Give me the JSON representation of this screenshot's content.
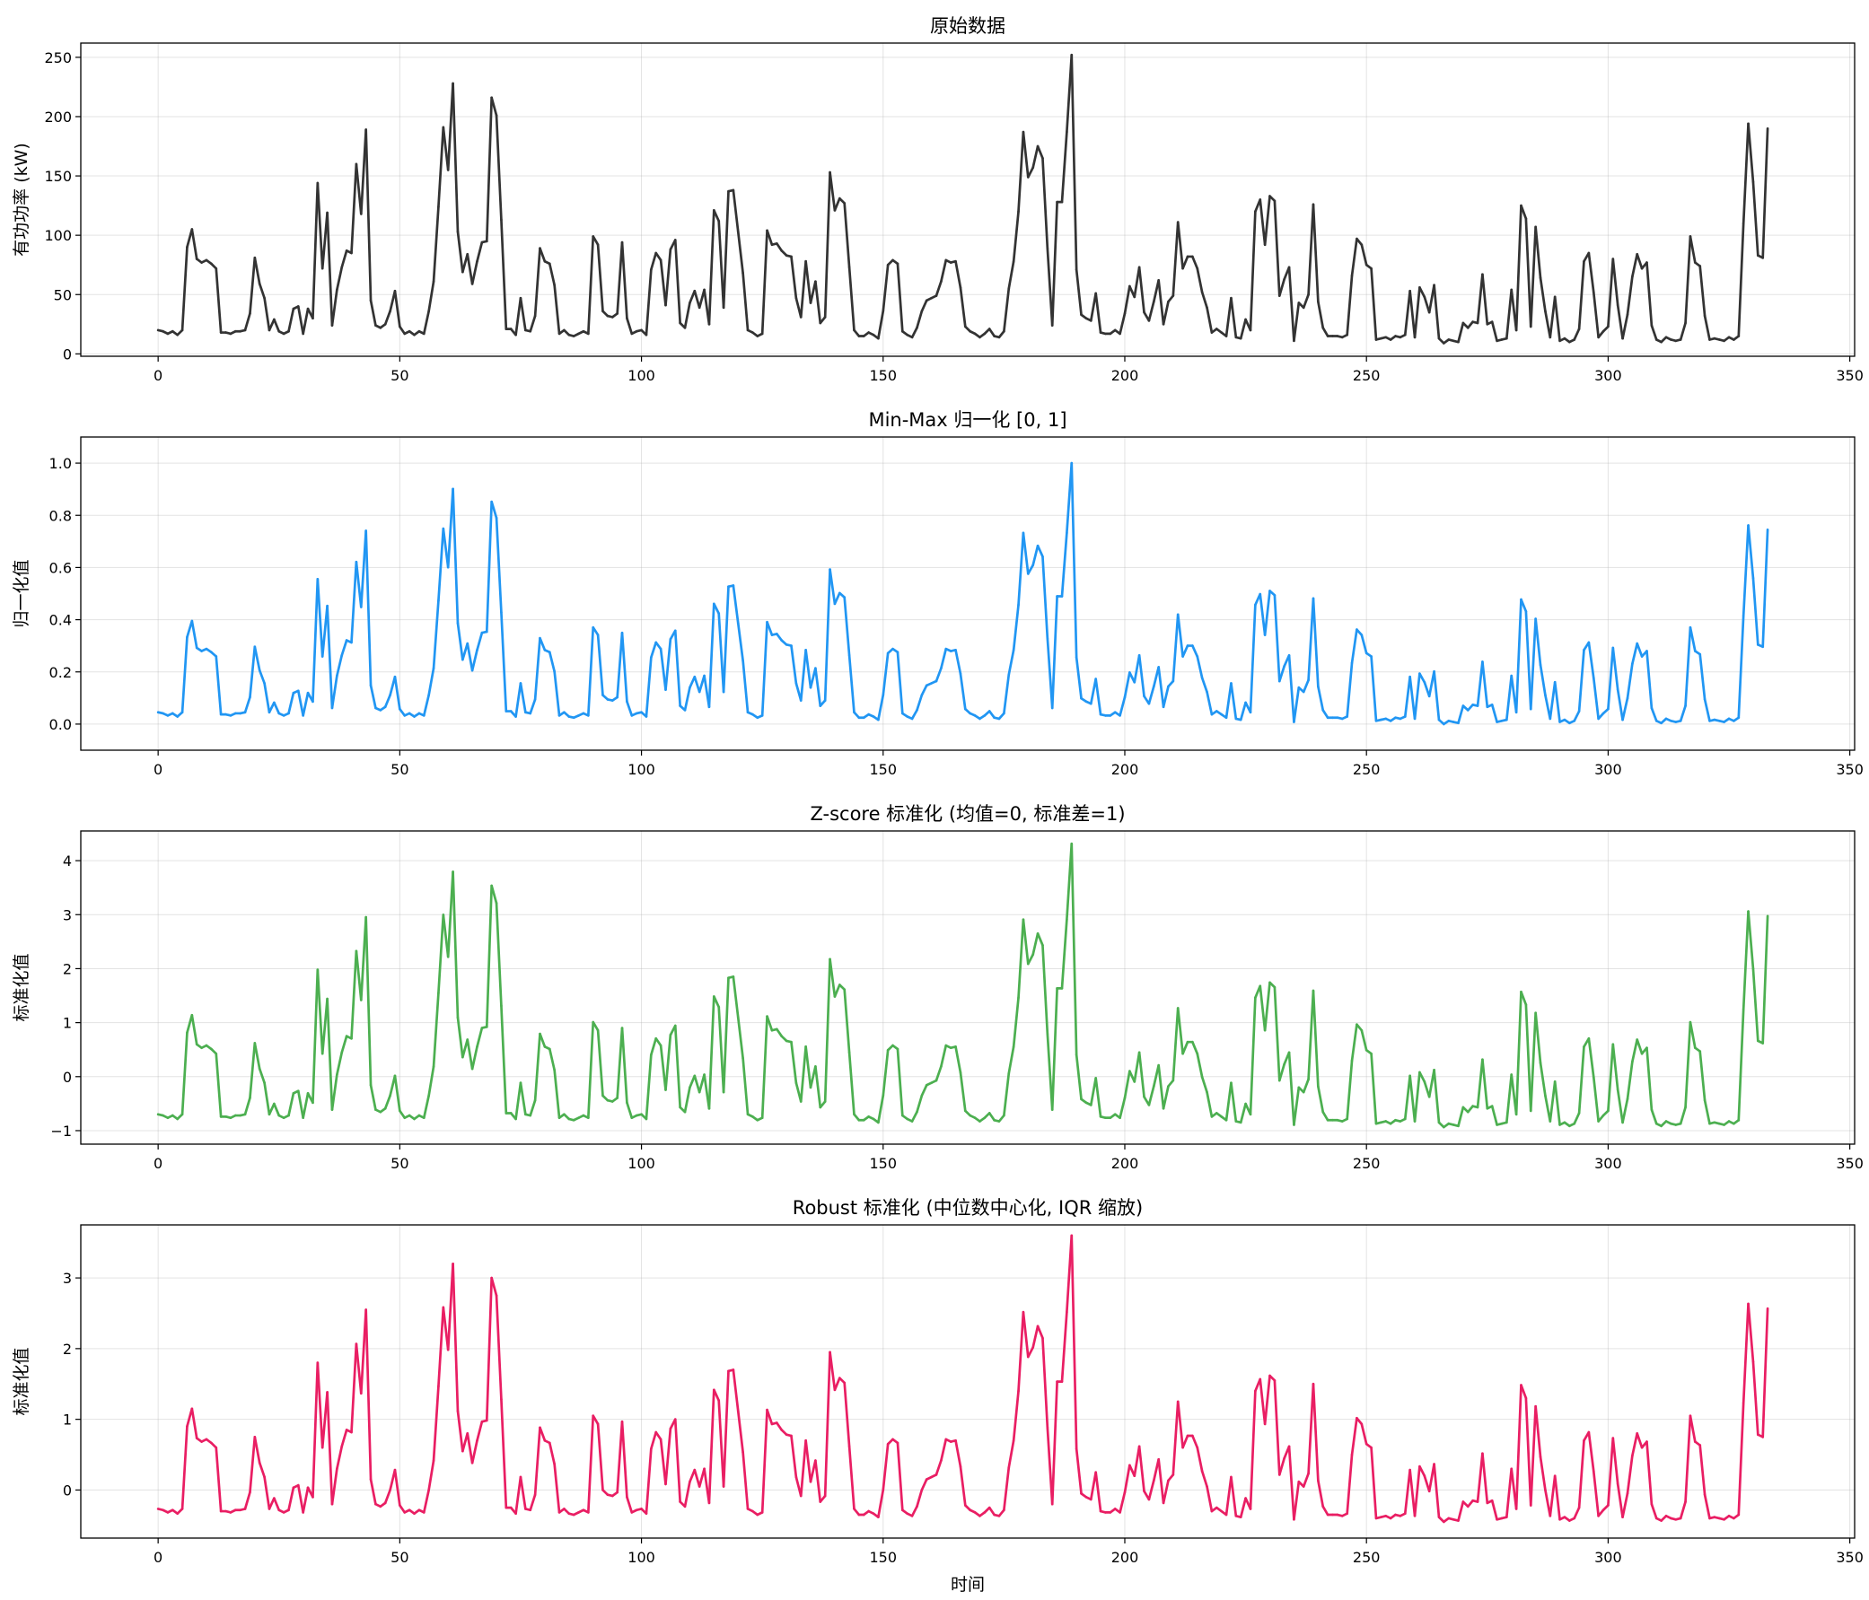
{
  "chart_data": [
    {
      "type": "line",
      "title": "原始数据",
      "xlabel": "",
      "ylabel": "有功功率 (kW)",
      "xlim": [
        -16,
        351
      ],
      "ylim": [
        -2,
        262
      ],
      "xticks": [
        0,
        50,
        100,
        150,
        200,
        250,
        300,
        350
      ],
      "yticks": [
        0,
        50,
        100,
        150,
        200,
        250
      ],
      "ytick_labels": [
        "0",
        "50",
        "100",
        "150",
        "200",
        "250"
      ],
      "grid": true,
      "color": "#333333",
      "series": [
        {
          "values": [
            20,
            19,
            17,
            19,
            16,
            20,
            90,
            105,
            80,
            77,
            79,
            76,
            72,
            18,
            18,
            17,
            19,
            19,
            20,
            34,
            81,
            59,
            47,
            20,
            29,
            19,
            17,
            19,
            38,
            40,
            17,
            38,
            30,
            144,
            72,
            119,
            24,
            54,
            73,
            87,
            85,
            160,
            118,
            189,
            45,
            24,
            22,
            25,
            36,
            53,
            23,
            17,
            19,
            16,
            19,
            17,
            36,
            61,
            124,
            191,
            155,
            228,
            103,
            69,
            84,
            59,
            78,
            94,
            95,
            216,
            201,
            113,
            21,
            21,
            16,
            47,
            20,
            19,
            32,
            89,
            78,
            76,
            58,
            17,
            20,
            16,
            15,
            17,
            19,
            17,
            99,
            92,
            36,
            32,
            31,
            34,
            94,
            30,
            17,
            19,
            20,
            16,
            71,
            85,
            79,
            41,
            88,
            96,
            26,
            22,
            43,
            53,
            39,
            54,
            25,
            121,
            112,
            39,
            137,
            138,
            103,
            68,
            20,
            18,
            15,
            17,
            104,
            92,
            93,
            87,
            83,
            82,
            47,
            31,
            78,
            43,
            61,
            26,
            31,
            153,
            121,
            131,
            127,
            73,
            20,
            15,
            15,
            18,
            16,
            13,
            36,
            75,
            79,
            76,
            19,
            16,
            14,
            22,
            36,
            45,
            47,
            49,
            61,
            79,
            77,
            78,
            56,
            23,
            19,
            17,
            14,
            17,
            21,
            15,
            14,
            19,
            55,
            78,
            120,
            187,
            149,
            157,
            175,
            165,
            89,
            24,
            128,
            128,
            187,
            252,
            71,
            33,
            30,
            28,
            51,
            18,
            17,
            17,
            20,
            17,
            34,
            57,
            48,
            73,
            35,
            28,
            44,
            62,
            25,
            44,
            49,
            111,
            72,
            82,
            82,
            72,
            52,
            39,
            18,
            21,
            18,
            15,
            47,
            14,
            13,
            29,
            20,
            120,
            130,
            92,
            133,
            129,
            49,
            63,
            73,
            11,
            43,
            39,
            50,
            126,
            44,
            22,
            15,
            15,
            15,
            14,
            16,
            66,
            97,
            92,
            75,
            72,
            12,
            13,
            14,
            12,
            15,
            14,
            16,
            53,
            14,
            56,
            48,
            35,
            58,
            13,
            9,
            12,
            11,
            10,
            26,
            22,
            27,
            26,
            67,
            25,
            27,
            11,
            12,
            13,
            54,
            20,
            125,
            114,
            23,
            107,
            64,
            36,
            14,
            48,
            11,
            13,
            10,
            12,
            21,
            78,
            85,
            52,
            14,
            19,
            23,
            80,
            41,
            13,
            33,
            65,
            84,
            72,
            77,
            24,
            12,
            10,
            14,
            12,
            11,
            12,
            26,
            99,
            77,
            74,
            32,
            12,
            13,
            12,
            11,
            14,
            12,
            15,
            110,
            194,
            145,
            83,
            81,
            190
          ]
        }
      ]
    },
    {
      "type": "line",
      "title": "Min-Max 归一化 [0, 1]",
      "xlabel": "",
      "ylabel": "归一化值",
      "xlim": [
        -16,
        351
      ],
      "ylim": [
        -0.1,
        1.1
      ],
      "xticks": [
        0,
        50,
        100,
        150,
        200,
        250,
        300,
        350
      ],
      "yticks": [
        0.0,
        0.2,
        0.4,
        0.6,
        0.8,
        1.0
      ],
      "ytick_labels": [
        "0.0",
        "0.2",
        "0.4",
        "0.6",
        "0.8",
        "1.0"
      ],
      "grid": true,
      "color": "#2196f3",
      "transform": {
        "min": 9,
        "max": 252
      }
    },
    {
      "type": "line",
      "title": "Z-score 标准化 (均值=0, 标准差=1)",
      "xlabel": "",
      "ylabel": "标准化值",
      "xlim": [
        -16,
        351
      ],
      "ylim": [
        -1.25,
        4.55
      ],
      "xticks": [
        0,
        50,
        100,
        150,
        200,
        250,
        300,
        350
      ],
      "yticks": [
        -1,
        0,
        1,
        2,
        3,
        4
      ],
      "ytick_labels": [
        "−1",
        "0",
        "1",
        "2",
        "3",
        "4"
      ],
      "grid": true,
      "color": "#4caf50",
      "transform": {
        "mean": 52.3,
        "std": 46.3
      }
    },
    {
      "type": "line",
      "title": "Robust 标准化 (中位数中心化, IQR 缩放)",
      "xlabel": "时间",
      "ylabel": "标准化值",
      "xlim": [
        -16,
        351
      ],
      "ylim": [
        -0.68,
        3.75
      ],
      "xticks": [
        0,
        50,
        100,
        150,
        200,
        250,
        300,
        350
      ],
      "yticks": [
        0,
        1,
        2,
        3
      ],
      "ytick_labels": [
        "0",
        "1",
        "2",
        "3"
      ],
      "grid": true,
      "color": "#e91e63",
      "transform": {
        "median": 36,
        "iqr": 60
      }
    }
  ]
}
